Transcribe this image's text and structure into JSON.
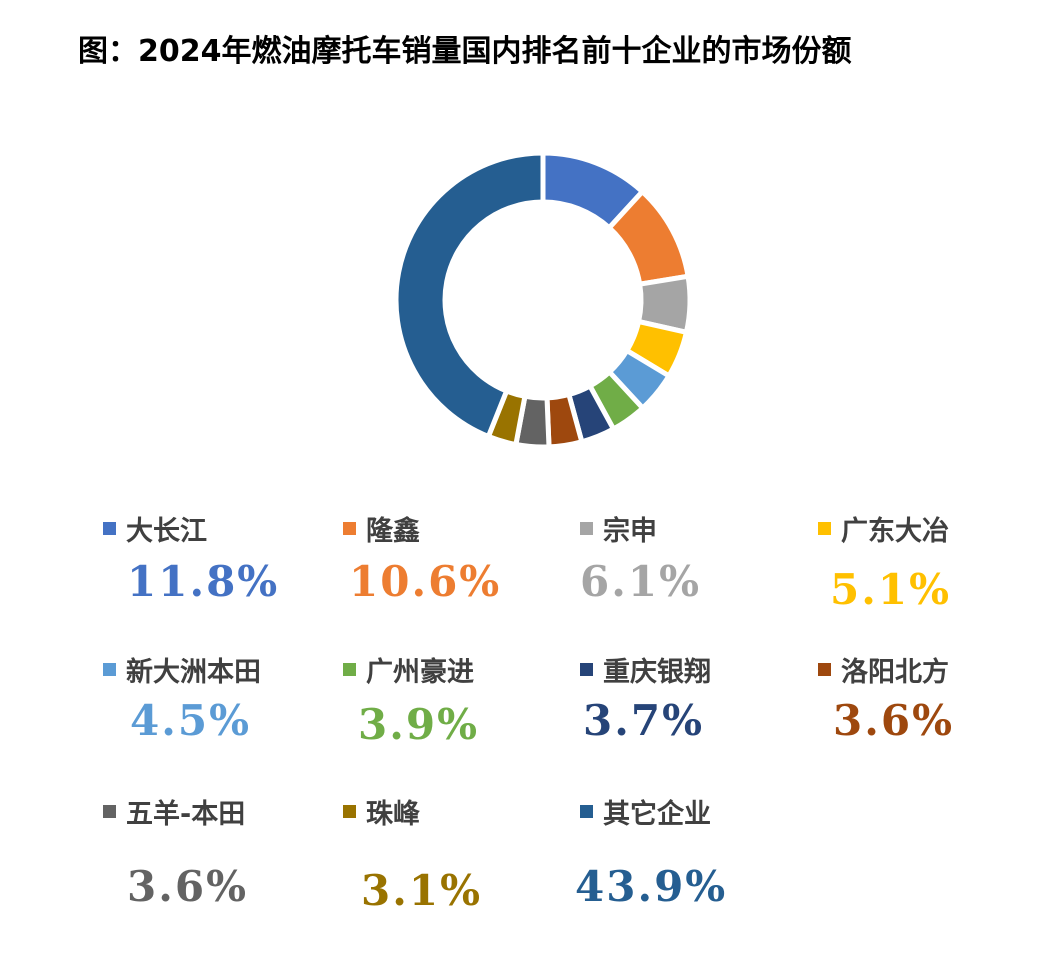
{
  "title": "图：2024年燃油摩托车销量国内排名前十企业的市场份额",
  "chart_data": {
    "type": "pie",
    "variant": "donut",
    "title": "图：2024年燃油摩托车销量国内排名前十企业的市场份额",
    "unit": "%",
    "legend_placement": "bottom",
    "slices": [
      {
        "label": "大长江",
        "value": 11.8,
        "display": "11.8%",
        "color": "#4472C4"
      },
      {
        "label": "隆鑫",
        "value": 10.6,
        "display": "10.6%",
        "color": "#ED7D31"
      },
      {
        "label": "宗申",
        "value": 6.1,
        "display": "6.1%",
        "color": "#A5A5A5"
      },
      {
        "label": "广东大冶",
        "value": 5.1,
        "display": "5.1%",
        "color": "#FFC000"
      },
      {
        "label": "新大洲本田",
        "value": 4.5,
        "display": "4.5%",
        "color": "#5B9BD5"
      },
      {
        "label": "广州豪进",
        "value": 3.9,
        "display": "3.9%",
        "color": "#70AD47"
      },
      {
        "label": "重庆银翔",
        "value": 3.7,
        "display": "3.7%",
        "color": "#264478"
      },
      {
        "label": "洛阳北方",
        "value": 3.6,
        "display": "3.6%",
        "color": "#9E480E"
      },
      {
        "label": "五羊-本田",
        "value": 3.6,
        "display": "3.6%",
        "color": "#636363"
      },
      {
        "label": "珠峰",
        "value": 3.1,
        "display": "3.1%",
        "color": "#997300"
      },
      {
        "label": "其它企业",
        "value": 43.9,
        "display": "43.9%",
        "color": "#255E91"
      }
    ]
  }
}
